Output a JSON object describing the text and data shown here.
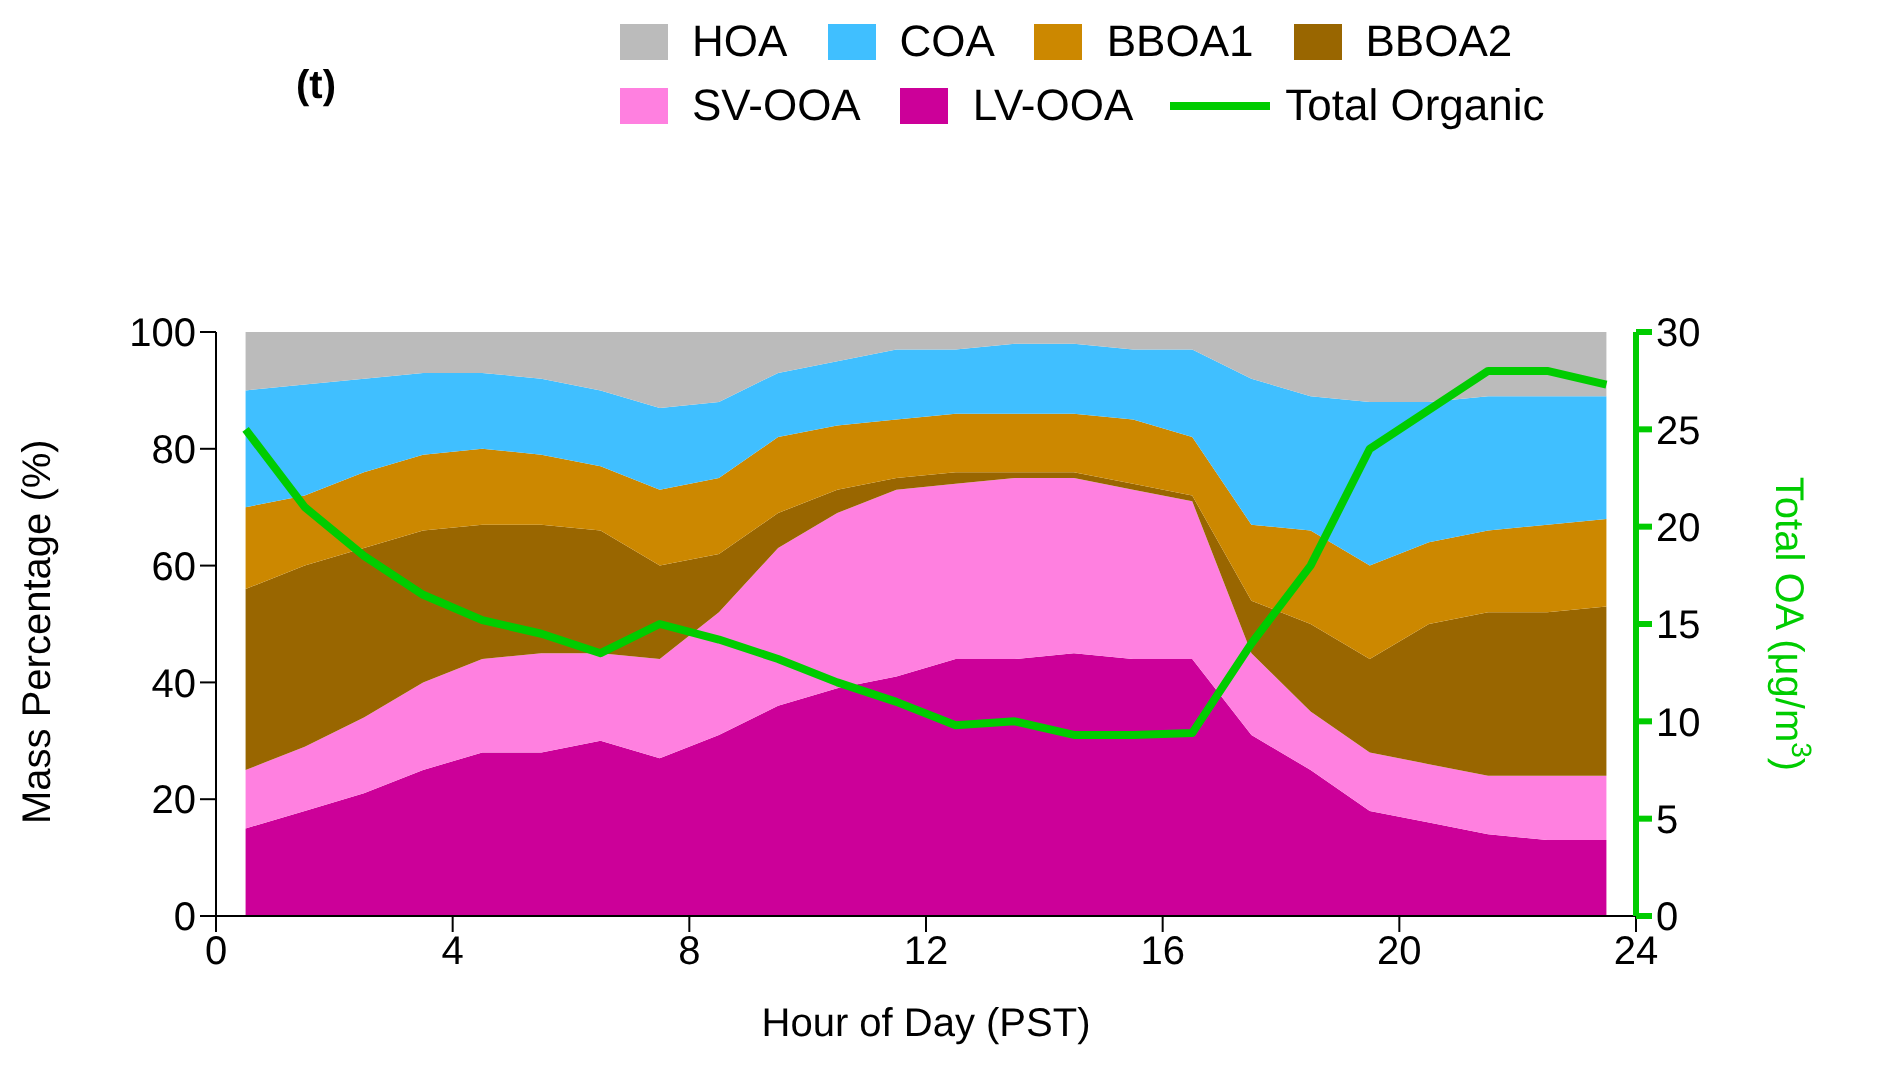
{
  "chart_data": {
    "type": "area",
    "stacked": true,
    "title": "(t)",
    "xlabel": "Hour of Day (PST)",
    "ylabel": "Mass Percentage (%)",
    "y2label": "Total OA (μg/m$^{3}$)",
    "x": [
      0.5,
      1.5,
      2.5,
      3.5,
      4.5,
      5.5,
      6.5,
      7.5,
      8.5,
      9.5,
      10.5,
      11.5,
      12.5,
      13.5,
      14.5,
      15.5,
      16.5,
      17.5,
      18.5,
      19.5,
      20.5,
      21.5,
      22.5,
      23.5
    ],
    "xlim": [
      0,
      24
    ],
    "xticks": [
      0,
      4,
      8,
      12,
      16,
      20,
      24
    ],
    "ylim": [
      0,
      100
    ],
    "yticks": [
      0,
      20,
      40,
      60,
      80,
      100
    ],
    "y2lim": [
      0,
      30
    ],
    "y2ticks": [
      0,
      5,
      10,
      15,
      20,
      25,
      30
    ],
    "legend": "top",
    "series": [
      {
        "name": "LV-OOA",
        "color": "#cc0099",
        "values": [
          15,
          18,
          21,
          25,
          28,
          28,
          30,
          27,
          31,
          36,
          39,
          41,
          44,
          44,
          45,
          44,
          44,
          31,
          25,
          18,
          16,
          14,
          13,
          13
        ]
      },
      {
        "name": "SV-OOA",
        "color": "#ff80e0",
        "values": [
          10,
          11,
          13,
          15,
          16,
          17,
          15,
          17,
          21,
          27,
          30,
          32,
          30,
          31,
          30,
          29,
          27,
          14,
          10,
          10,
          10,
          10,
          11,
          11
        ]
      },
      {
        "name": "BBOA2",
        "color": "#996600",
        "values": [
          31,
          31,
          29,
          26,
          23,
          22,
          21,
          16,
          10,
          6,
          4,
          2,
          2,
          1,
          1,
          1,
          1,
          9,
          15,
          16,
          24,
          28,
          28,
          29
        ]
      },
      {
        "name": "BBOA1",
        "color": "#cc8800",
        "values": [
          14,
          12,
          13,
          13,
          13,
          12,
          11,
          13,
          13,
          13,
          11,
          10,
          10,
          10,
          10,
          11,
          10,
          13,
          16,
          16,
          14,
          14,
          15,
          15
        ]
      },
      {
        "name": "COA",
        "color": "#40bfff",
        "values": [
          20,
          19,
          16,
          14,
          13,
          13,
          13,
          14,
          13,
          11,
          11,
          12,
          11,
          12,
          12,
          12,
          15,
          25,
          23,
          28,
          24,
          23,
          22,
          21
        ]
      },
      {
        "name": "HOA",
        "color": "#bbbbbb",
        "values": [
          10,
          9,
          8,
          7,
          7,
          8,
          10,
          13,
          12,
          7,
          5,
          3,
          3,
          2,
          2,
          3,
          3,
          8,
          11,
          12,
          12,
          11,
          11,
          11
        ]
      },
      {
        "name": "Total Organic",
        "type": "line",
        "axis": "y2",
        "color": "#00cc00",
        "values": [
          25,
          21,
          18.5,
          16.5,
          15.2,
          14.5,
          13.5,
          15,
          14.2,
          13.2,
          12,
          11,
          9.8,
          10,
          9.3,
          9.3,
          9.4,
          14,
          18,
          24,
          26,
          28,
          28,
          27.3
        ]
      }
    ]
  }
}
